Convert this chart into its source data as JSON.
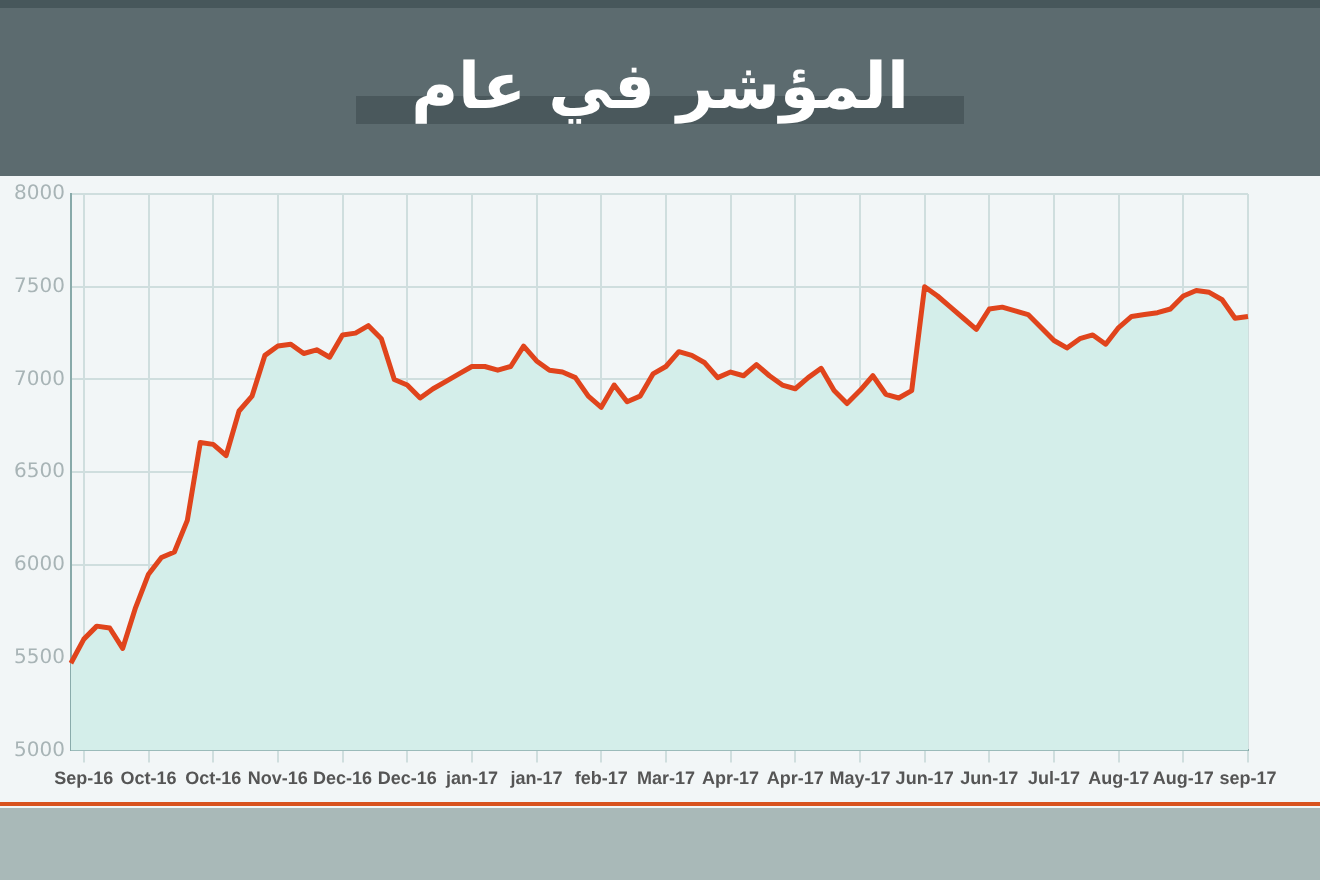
{
  "chart_data": {
    "type": "area",
    "title": "المؤشر في عام",
    "categories": [
      null,
      "Sep-16",
      null,
      null,
      null,
      null,
      "Oct-16",
      null,
      null,
      null,
      null,
      "Oct-16",
      null,
      null,
      null,
      null,
      "Nov-16",
      null,
      null,
      null,
      null,
      "Dec-16",
      null,
      null,
      null,
      null,
      "Dec-16",
      null,
      null,
      null,
      null,
      "jan-17",
      null,
      null,
      null,
      null,
      "jan-17",
      null,
      null,
      null,
      null,
      "feb-17",
      null,
      null,
      null,
      null,
      "Mar-17",
      null,
      null,
      null,
      null,
      "Apr-17",
      null,
      null,
      null,
      null,
      "Apr-17",
      null,
      null,
      null,
      null,
      "May-17",
      null,
      null,
      null,
      null,
      "Jun-17",
      null,
      null,
      null,
      null,
      "Jun-17",
      null,
      null,
      null,
      null,
      "Jul-17",
      null,
      null,
      null,
      null,
      "Aug-17",
      null,
      null,
      null,
      null,
      "Aug-17",
      null,
      null,
      null,
      null,
      "sep-17"
    ],
    "ylim": [
      5000,
      8000
    ],
    "yticks": [
      5000,
      5500,
      6000,
      6500,
      7000,
      7500,
      8000
    ],
    "grid": true,
    "marker": "none",
    "line_style": "solid",
    "series": [
      {
        "color": "#e0441c",
        "values": [
          5470,
          5600,
          5670,
          5660,
          5550,
          5770,
          5950,
          6040,
          6070,
          6240,
          6660,
          6650,
          6590,
          6830,
          6910,
          7130,
          7180,
          7190,
          7140,
          7160,
          7120,
          7240,
          7250,
          7290,
          7220,
          7000,
          6970,
          6900,
          6950,
          6990,
          7030,
          7070,
          7070,
          7050,
          7070,
          7180,
          7100,
          7050,
          7040,
          7010,
          6910,
          6850,
          6970,
          6880,
          6910,
          7030,
          7070,
          7150,
          7130,
          7090,
          7010,
          7040,
          7020,
          7080,
          7020,
          6970,
          6950,
          7010,
          7060,
          6940,
          6870,
          6940,
          7020,
          6920,
          6900,
          6940,
          7500,
          7450,
          7390,
          7330,
          7270,
          7380,
          7390,
          7370,
          7350,
          7280,
          7210,
          7170,
          7220,
          7240,
          7190,
          7280,
          7340,
          7350,
          7360,
          7380,
          7450,
          7480,
          7470,
          7430,
          7330,
          7340
        ]
      }
    ]
  }
}
